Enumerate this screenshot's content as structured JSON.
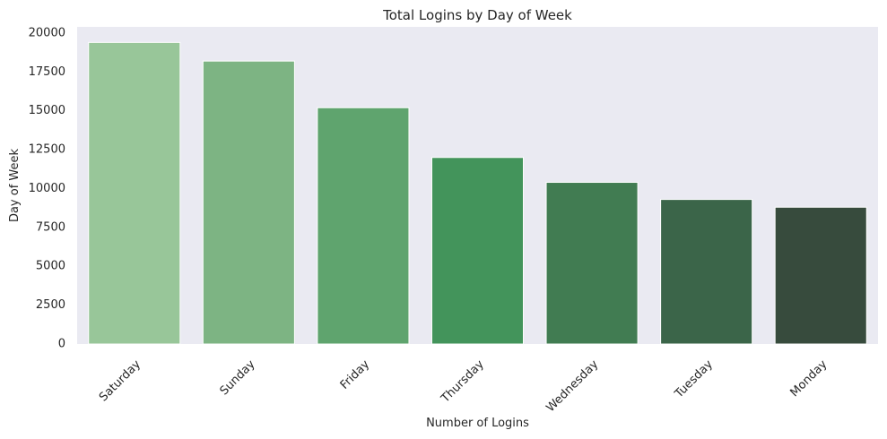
{
  "chart_data": {
    "type": "bar",
    "title": "Total Logins by Day of Week",
    "xlabel": "Number of Logins",
    "ylabel": "Day of Week",
    "categories": [
      "Saturday",
      "Sunday",
      "Friday",
      "Thursday",
      "Wednesday",
      "Tuesday",
      "Monday"
    ],
    "values": [
      19400,
      18200,
      15200,
      12000,
      10400,
      9300,
      8800
    ],
    "ylim": [
      0,
      20400
    ],
    "yticks": [
      0,
      2500,
      5000,
      7500,
      10000,
      12500,
      15000,
      17500,
      20000
    ],
    "grid": false,
    "legend": "none",
    "colors": [
      "#98c699",
      "#7db483",
      "#5fa46e",
      "#43945b",
      "#417c52",
      "#3b6549",
      "#374b3d"
    ],
    "plot_background": "#eaeaf2"
  }
}
